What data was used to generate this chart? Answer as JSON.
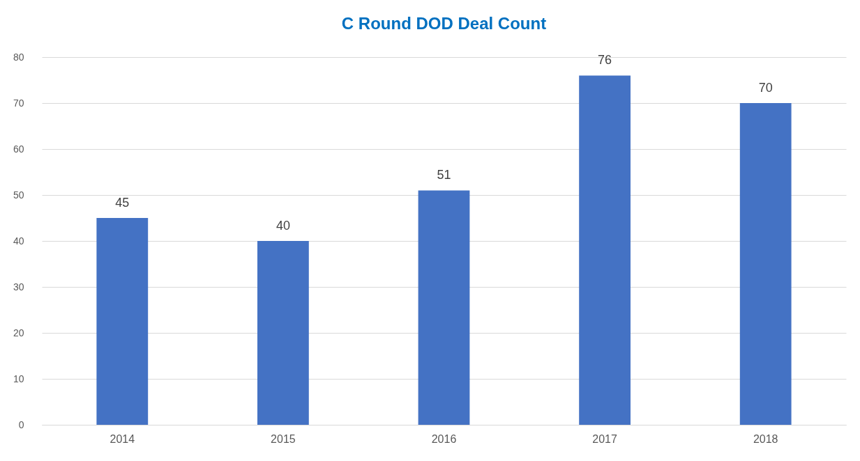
{
  "chart_data": {
    "type": "bar",
    "title": "C Round DOD Deal Count",
    "categories": [
      "2014",
      "2015",
      "2016",
      "2017",
      "2018"
    ],
    "values": [
      45,
      40,
      51,
      76,
      70
    ],
    "color": "#4472c4",
    "ylim": [
      0,
      80
    ],
    "yticks": [
      0,
      10,
      20,
      30,
      40,
      50,
      60,
      70,
      80
    ],
    "grid": "y",
    "data_labels": true
  }
}
